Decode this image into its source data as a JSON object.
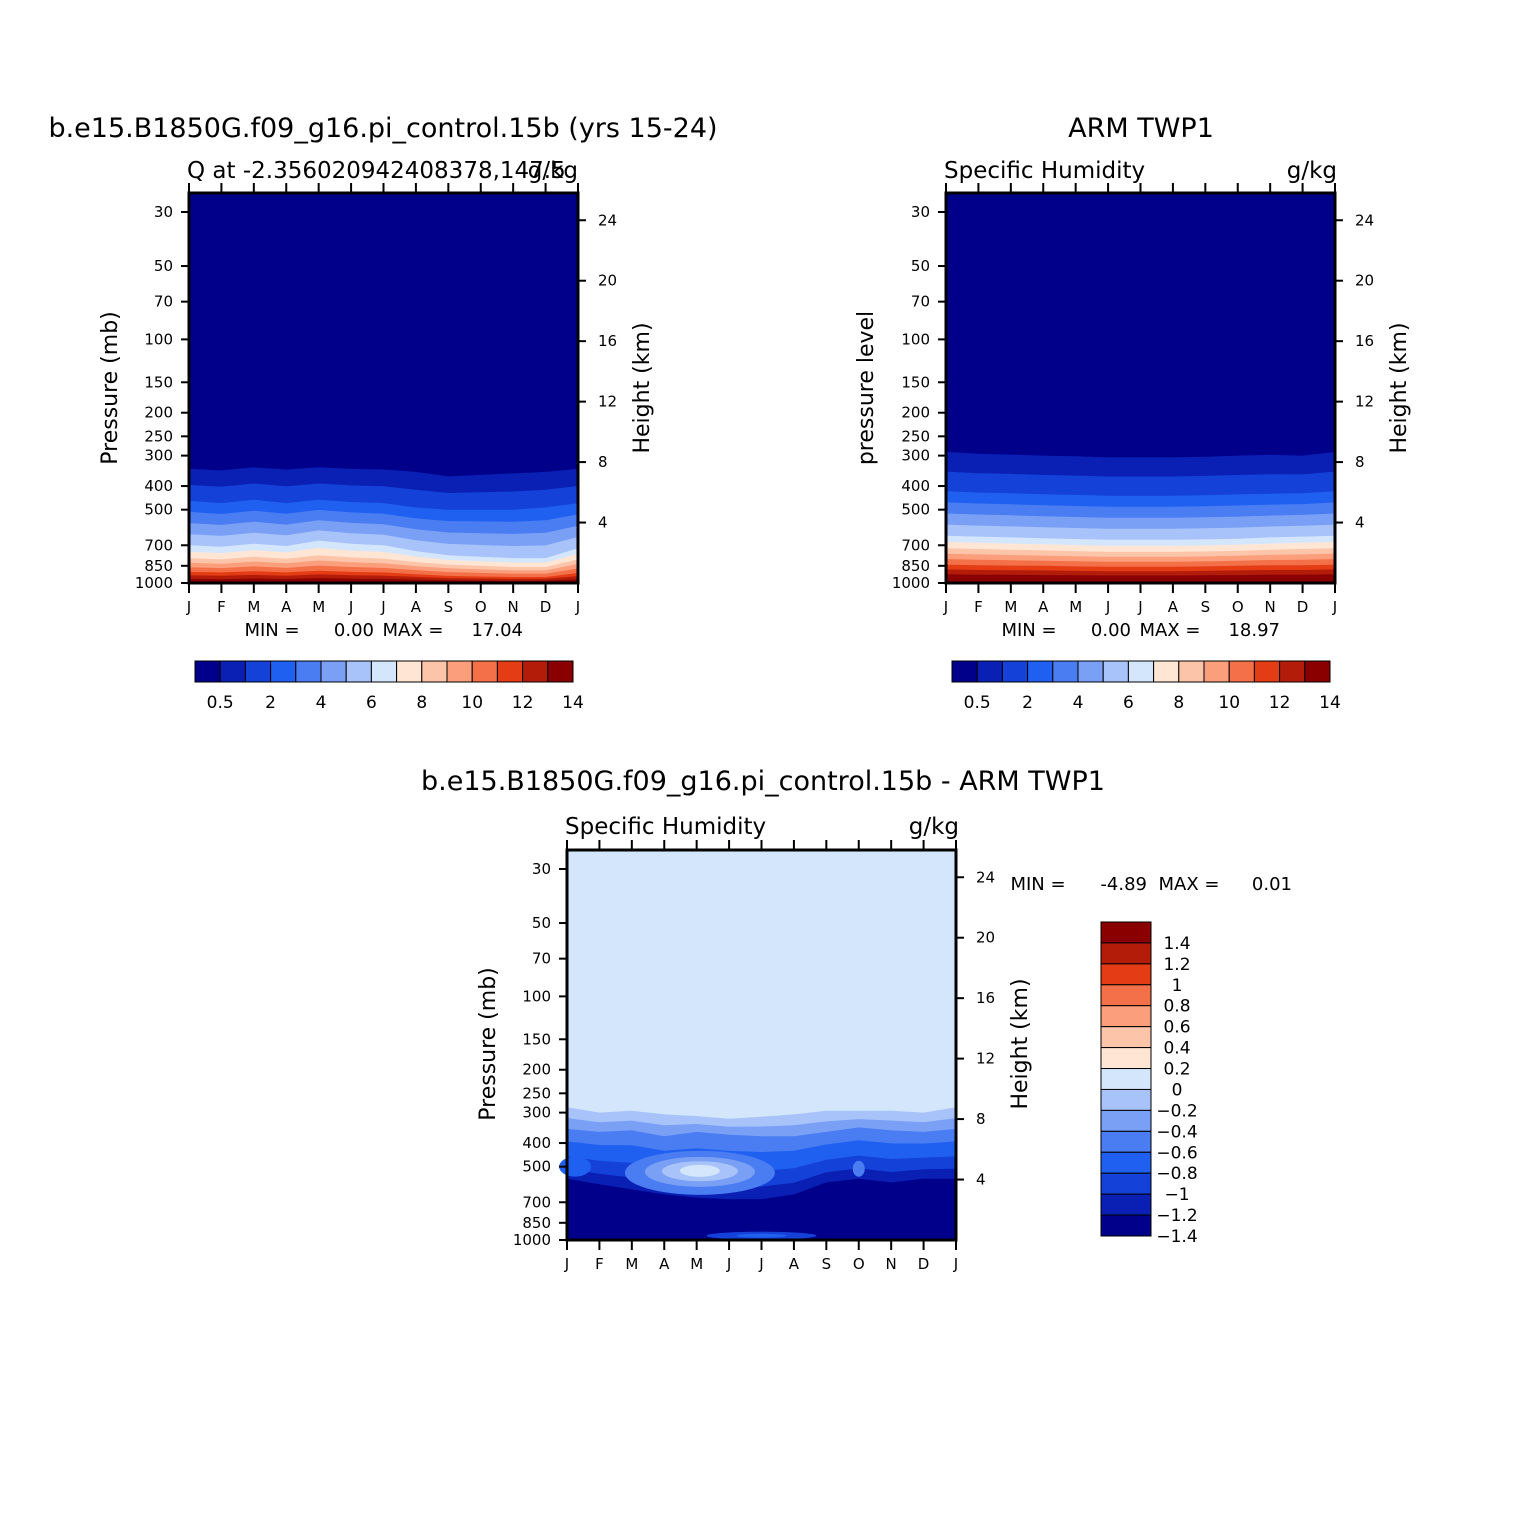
{
  "palette": [
    "#00008a",
    "#0a20b4",
    "#1441d8",
    "#2060f0",
    "#4a7df2",
    "#7aa0f6",
    "#a8c2fa",
    "#d4e6fc",
    "#ffe6d4",
    "#fcc5aa",
    "#fa9e7c",
    "#f47048",
    "#e43c14",
    "#b41c0a",
    "#8a0000"
  ],
  "months": [
    "J",
    "F",
    "M",
    "A",
    "M",
    "J",
    "J",
    "A",
    "S",
    "O",
    "N",
    "D",
    "J"
  ],
  "pressure_ticks": [
    30,
    50,
    70,
    100,
    150,
    200,
    250,
    300,
    400,
    500,
    700,
    850,
    1000
  ],
  "height_ticks": [
    4,
    8,
    12,
    16,
    20,
    24
  ],
  "panels": [
    {
      "title": "b.e15.B1850G.f09_g16.pi_control.15b (yrs 15-24)",
      "left_string": "Q at -2.356020942408378,147.5",
      "right_string": "g/kg",
      "ylabel": "Pressure (mb)",
      "ylabel_right": "Height (km)",
      "min_label": "MIN =",
      "min_value": "0.00",
      "max_label": "MAX =",
      "max_value": "17.04"
    },
    {
      "title": "ARM TWP1",
      "left_string": "Specific Humidity",
      "right_string": "g/kg",
      "ylabel": "pressure level",
      "ylabel_right": "Height (km)",
      "min_label": "MIN =",
      "min_value": "0.00",
      "max_label": "MAX =",
      "max_value": "18.97"
    },
    {
      "title": "b.e15.B1850G.f09_g16.pi_control.15b - ARM TWP1",
      "left_string": "Specific Humidity",
      "right_string": "g/kg",
      "ylabel": "Pressure (mb)",
      "ylabel_right": "Height (km)",
      "min_label": "MIN =",
      "min_value": "-4.89",
      "max_label": "MAX =",
      "max_value": "0.01"
    }
  ],
  "colorbar_abs": {
    "colors": [
      "#00008a",
      "#0a20b4",
      "#1441d8",
      "#2060f0",
      "#4a7df2",
      "#7aa0f6",
      "#a8c2fa",
      "#d4e6fc",
      "#ffe6d4",
      "#fcc5aa",
      "#fa9e7c",
      "#f47048",
      "#e43c14",
      "#b41c0a",
      "#8a0000"
    ],
    "labels": [
      "0.5",
      "2",
      "4",
      "6",
      "8",
      "10",
      "12",
      "14"
    ]
  },
  "colorbar_diff": {
    "colors": [
      "#00008a",
      "#0a20b4",
      "#1441d8",
      "#2060f0",
      "#4a7df2",
      "#7aa0f6",
      "#a8c2fa",
      "#d4e6fc",
      "#ffe6d4",
      "#fcc5aa",
      "#fa9e7c",
      "#f47048",
      "#e43c14",
      "#b41c0a",
      "#8a0000"
    ],
    "labels": [
      "-1.4",
      "-1.2",
      "-1",
      "-0.8",
      "-0.6",
      "-0.4",
      "-0.2",
      "0",
      "0.2",
      "0.4",
      "0.6",
      "0.8",
      "1",
      "1.2",
      "1.4"
    ]
  },
  "chart_data": [
    {
      "type": "contour",
      "title": "b.e15.B1850G.f09_g16.pi_control.15b (yrs 15-24)",
      "variable": "Q",
      "units": "g/kg",
      "xlabel": "",
      "ylabel": "Pressure (mb)",
      "ylabel_right": "Height (km)",
      "x": [
        "J",
        "F",
        "M",
        "A",
        "M",
        "J",
        "J",
        "A",
        "S",
        "O",
        "N",
        "D",
        "J"
      ],
      "ylim": [
        1000,
        25
      ],
      "yscale": "log",
      "contour_levels": [
        0.5,
        1,
        2,
        3,
        4,
        5,
        6,
        7,
        8,
        9,
        10,
        11,
        12,
        13,
        14
      ],
      "level_pressures_mb": {
        "q0.5": [
          340,
          345,
          335,
          342,
          335,
          340,
          342,
          350,
          365,
          360,
          355,
          350,
          340
        ],
        "q2": [
          460,
          470,
          455,
          470,
          455,
          465,
          470,
          490,
          500,
          500,
          500,
          490,
          470
        ],
        "q6": [
          700,
          710,
          690,
          705,
          670,
          690,
          700,
          740,
          770,
          780,
          790,
          790,
          720
        ],
        "q8": [
          790,
          800,
          780,
          795,
          770,
          785,
          795,
          820,
          840,
          850,
          860,
          860,
          800
        ],
        "q12": [
          900,
          905,
          895,
          905,
          890,
          900,
          905,
          920,
          935,
          940,
          945,
          945,
          910
        ],
        "q14": [
          960,
          965,
          958,
          963,
          955,
          960,
          962,
          968,
          975,
          978,
          980,
          978,
          965
        ]
      },
      "min": 0.0,
      "max": 17.04
    },
    {
      "type": "contour",
      "title": "ARM TWP1",
      "variable": "Specific Humidity",
      "units": "g/kg",
      "xlabel": "",
      "ylabel": "pressure level",
      "ylabel_right": "Height (km)",
      "x": [
        "J",
        "F",
        "M",
        "A",
        "M",
        "J",
        "J",
        "A",
        "S",
        "O",
        "N",
        "D",
        "J"
      ],
      "ylim": [
        1000,
        25
      ],
      "yscale": "log",
      "contour_levels": [
        0.5,
        1,
        2,
        3,
        4,
        5,
        6,
        7,
        8,
        9,
        10,
        11,
        12,
        13,
        14
      ],
      "level_pressures_mb": {
        "q0.5": [
          290,
          295,
          297,
          300,
          302,
          305,
          305,
          305,
          303,
          300,
          298,
          300,
          290
        ],
        "q2": [
          420,
          425,
          428,
          432,
          435,
          438,
          438,
          438,
          436,
          433,
          430,
          428,
          420
        ],
        "q6": [
          640,
          645,
          650,
          655,
          660,
          665,
          665,
          665,
          662,
          658,
          650,
          645,
          640
        ],
        "q8": [
          720,
          725,
          730,
          735,
          740,
          745,
          745,
          745,
          742,
          738,
          730,
          725,
          720
        ],
        "q12": [
          840,
          845,
          848,
          850,
          855,
          858,
          858,
          858,
          855,
          850,
          845,
          845,
          840
        ],
        "q14": [
          920,
          925,
          925,
          928,
          930,
          932,
          932,
          932,
          930,
          928,
          925,
          925,
          920
        ]
      },
      "min": 0.0,
      "max": 18.97
    },
    {
      "type": "contour",
      "title": "b.e15.B1850G.f09_g16.pi_control.15b - ARM TWP1",
      "variable": "Specific Humidity",
      "units": "g/kg",
      "xlabel": "",
      "ylabel": "Pressure (mb)",
      "ylabel_right": "Height (km)",
      "x": [
        "J",
        "F",
        "M",
        "A",
        "M",
        "J",
        "J",
        "A",
        "S",
        "O",
        "N",
        "D",
        "J"
      ],
      "ylim": [
        1000,
        25
      ],
      "yscale": "log",
      "contour_levels": [
        -1.4,
        -1.2,
        -1,
        -0.8,
        -0.6,
        -0.4,
        -0.2,
        0,
        0.2,
        0.4,
        0.6,
        0.8,
        1,
        1.2,
        1.4
      ],
      "level_pressures_mb": {
        "d-0.2": [
          285,
          300,
          295,
          305,
          310,
          318,
          312,
          305,
          295,
          295,
          295,
          300,
          285
        ],
        "d-0.6": [
          350,
          360,
          355,
          375,
          360,
          370,
          375,
          375,
          360,
          345,
          355,
          360,
          350
        ],
        "d-1.4": [
          560,
          590,
          620,
          650,
          670,
          680,
          680,
          650,
          580,
          560,
          580,
          560,
          560
        ]
      },
      "min": -4.89,
      "max": 0.01
    }
  ]
}
